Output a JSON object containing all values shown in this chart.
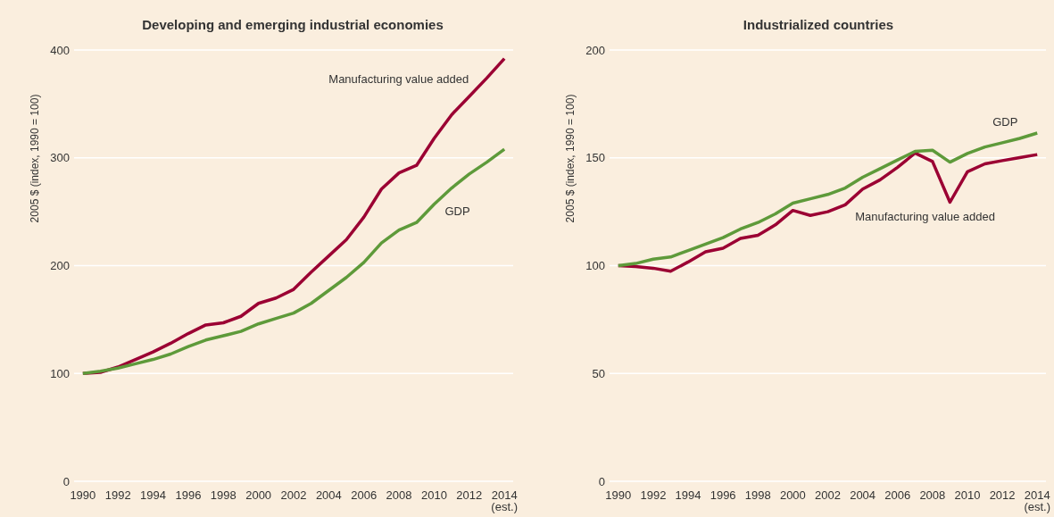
{
  "chart_data": [
    {
      "type": "line",
      "title": "Developing and emerging industrial economies",
      "ylabel": "2005 $ (index, 1990 = 100)",
      "x": [
        1990,
        1991,
        1992,
        1993,
        1994,
        1995,
        1996,
        1997,
        1998,
        1999,
        2000,
        2001,
        2002,
        2003,
        2004,
        2005,
        2006,
        2007,
        2008,
        2009,
        2010,
        2011,
        2012,
        2013,
        2014
      ],
      "series": [
        {
          "name": "Manufacturing value added",
          "color": "#9b0033",
          "values": [
            100,
            101,
            106,
            113,
            120,
            128,
            137,
            145,
            147,
            153,
            165,
            170,
            178,
            194,
            209,
            224,
            245,
            271,
            286,
            293,
            318,
            340,
            357,
            374,
            392
          ]
        },
        {
          "name": "GDP",
          "color": "#5e9a3a",
          "values": [
            100,
            102,
            105,
            109,
            113,
            118,
            125,
            131,
            135,
            139,
            146,
            151,
            156,
            165,
            177,
            189,
            203,
            221,
            233,
            240,
            257,
            272,
            285,
            296,
            308
          ]
        }
      ],
      "xlim": [
        1989.5,
        2014.5
      ],
      "xticks": [
        1990,
        1992,
        1994,
        1996,
        1998,
        2000,
        2002,
        2004,
        2006,
        2008,
        2010,
        2012,
        {
          "value": 2014,
          "label": "2014 (est.)"
        }
      ],
      "ylim": [
        0,
        400
      ],
      "yticks": [
        0,
        100,
        200,
        300,
        400
      ],
      "grid": "y",
      "line_style": "solid",
      "marker": "none"
    },
    {
      "type": "line",
      "title": "Industrialized countries",
      "ylabel": "2005 $ (index, 1990 = 100)",
      "x": [
        1990,
        1991,
        1992,
        1993,
        1994,
        1995,
        1996,
        1997,
        1998,
        1999,
        2000,
        2001,
        2002,
        2003,
        2004,
        2005,
        2006,
        2007,
        2008,
        2009,
        2010,
        2011,
        2012,
        2013,
        2014
      ],
      "series": [
        {
          "name": "Manufacturing value added",
          "color": "#9b0033",
          "values": [
            100,
            99.6,
            98.8,
            97.4,
            101.7,
            106.4,
            108.1,
            112.6,
            114.1,
            118.9,
            125.6,
            123.3,
            125,
            128.2,
            135.5,
            139.8,
            145.6,
            152.2,
            148.3,
            129.4,
            143.5,
            147.2,
            148.7,
            150.1,
            151.5
          ]
        },
        {
          "name": "GDP",
          "color": "#5e9a3a",
          "values": [
            100,
            101,
            103,
            104,
            107,
            110,
            113,
            117,
            120,
            124,
            129,
            131,
            133,
            136,
            141,
            145,
            149,
            153,
            153.5,
            148,
            152,
            155,
            157,
            159,
            161.5
          ]
        }
      ],
      "xlim": [
        1989.5,
        2014.5
      ],
      "xticks": [
        1990,
        1992,
        1994,
        1996,
        1998,
        2000,
        2002,
        2004,
        2006,
        2008,
        2010,
        2012,
        {
          "value": 2014,
          "label": "2014 (est.)"
        }
      ],
      "ylim": [
        0,
        200
      ],
      "yticks": [
        0,
        50,
        100,
        150,
        200
      ],
      "grid": "y",
      "line_style": "solid",
      "marker": "none"
    }
  ]
}
